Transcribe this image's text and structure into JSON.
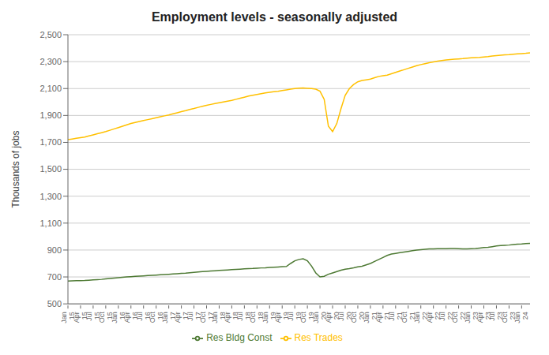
{
  "chart_data": {
    "type": "line",
    "title": "Employment levels - seasonally adjusted",
    "ylabel": "Thousands  of jobs",
    "categories": [
      "Jan\n15",
      null,
      null,
      "Apr\n15",
      null,
      null,
      "Jul\n15",
      null,
      null,
      "Oct\n15",
      null,
      null,
      "Jan\n16",
      null,
      null,
      "Apr\n16",
      null,
      null,
      "Jul\n16",
      null,
      null,
      "Oct\n16",
      null,
      null,
      "Jan\n17",
      null,
      null,
      "Apr\n17",
      null,
      null,
      "Jul\n17",
      null,
      null,
      "Oct\n17",
      null,
      null,
      "Jan\n18",
      null,
      null,
      "Apr\n18",
      null,
      null,
      "Jul\n18",
      null,
      null,
      "Oct\n18",
      null,
      null,
      "Jan\n19",
      null,
      null,
      "Apr\n19",
      null,
      null,
      "Jul\n19",
      null,
      null,
      "Oct\n19",
      null,
      null,
      "Jan\n20",
      null,
      null,
      "Apr\n20",
      null,
      null,
      "Jul\n20",
      null,
      null,
      "Oct\n20",
      null,
      null,
      "Jan\n21",
      null,
      null,
      "Apr\n21",
      null,
      null,
      "Jul\n21",
      null,
      null,
      "Oct\n21",
      null,
      null,
      "Jan\n22",
      null,
      null,
      "Apr\n22",
      null,
      null,
      "Jul\n22",
      null,
      null,
      "Oct\n22",
      null,
      null,
      "Jan\n23",
      null,
      null,
      "Apr\n23",
      null,
      null,
      "Jul\n23",
      null,
      null,
      "Oct\n23",
      null,
      null,
      "Jan\n24",
      null,
      null
    ],
    "series": [
      {
        "name": "Res Bldg Const",
        "color": "#4e7a34",
        "values": [
          670,
          671,
          672,
          673,
          674,
          676,
          678,
          680,
          682,
          685,
          688,
          691,
          694,
          697,
          700,
          702,
          704,
          706,
          708,
          710,
          712,
          714,
          716,
          718,
          720,
          722,
          724,
          726,
          728,
          731,
          734,
          737,
          740,
          742,
          744,
          746,
          748,
          750,
          752,
          754,
          756,
          758,
          760,
          762,
          763,
          765,
          767,
          768,
          770,
          772,
          774,
          776,
          778,
          800,
          820,
          830,
          835,
          820,
          780,
          730,
          700,
          705,
          720,
          730,
          740,
          750,
          758,
          762,
          768,
          775,
          780,
          790,
          800,
          815,
          830,
          845,
          860,
          870,
          875,
          880,
          885,
          890,
          895,
          900,
          903,
          906,
          908,
          909,
          910,
          910,
          910,
          911,
          911,
          910,
          909,
          908,
          910,
          912,
          915,
          918,
          920,
          925,
          930,
          933,
          935,
          937,
          940,
          943,
          945,
          948,
          950
        ]
      },
      {
        "name": "Res Trades",
        "color": "#ffc000",
        "values": [
          1720,
          1725,
          1730,
          1735,
          1740,
          1748,
          1756,
          1764,
          1772,
          1780,
          1790,
          1800,
          1810,
          1820,
          1830,
          1840,
          1848,
          1855,
          1862,
          1869,
          1876,
          1883,
          1890,
          1897,
          1904,
          1912,
          1920,
          1928,
          1936,
          1945,
          1952,
          1960,
          1968,
          1975,
          1982,
          1988,
          1994,
          2000,
          2006,
          2012,
          2020,
          2028,
          2036,
          2044,
          2050,
          2056,
          2062,
          2068,
          2072,
          2076,
          2080,
          2085,
          2090,
          2095,
          2100,
          2103,
          2104,
          2102,
          2100,
          2095,
          2080,
          2020,
          1820,
          1780,
          1840,
          1950,
          2050,
          2100,
          2130,
          2150,
          2160,
          2165,
          2170,
          2180,
          2190,
          2195,
          2200,
          2210,
          2220,
          2230,
          2240,
          2250,
          2260,
          2270,
          2278,
          2285,
          2292,
          2298,
          2303,
          2308,
          2312,
          2316,
          2318,
          2320,
          2322,
          2325,
          2328,
          2330,
          2332,
          2335,
          2338,
          2342,
          2345,
          2348,
          2350,
          2352,
          2355,
          2358,
          2360,
          2362,
          2365
        ]
      }
    ],
    "ylim": [
      500,
      2500
    ],
    "yticks": [
      500,
      700,
      900,
      {
        "value": 1100,
        "label": "1,100"
      },
      {
        "value": 1300,
        "label": "1,300"
      },
      {
        "value": 1500,
        "label": "1,500"
      },
      {
        "value": 1700,
        "label": "1,700"
      },
      {
        "value": 1900,
        "label": "1,900"
      },
      {
        "value": 2100,
        "label": "2,100"
      },
      {
        "value": 2300,
        "label": "2,300"
      },
      {
        "value": 2500,
        "label": "2,500"
      }
    ],
    "grid": true,
    "legend": "bottom"
  }
}
